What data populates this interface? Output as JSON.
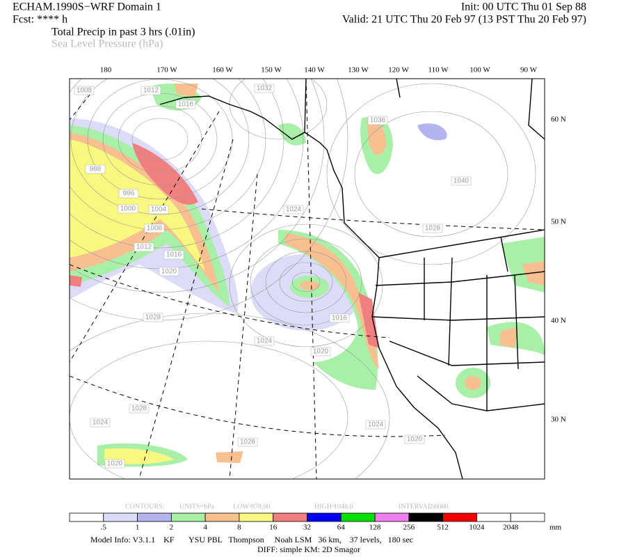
{
  "header": {
    "model": "ECHAM.1990S−WRF Domain 1",
    "init": "Init: 00 UTC Thu 01 Sep 88",
    "fcst": "Fcst: **** h",
    "valid": "Valid: 21 UTC Thu 20 Feb 97 (13 PST Thu 20 Feb 97)",
    "field_primary": "Total Precip in past 3 hrs (.01in)",
    "field_secondary": "Sea Level Pressure (hPa)"
  },
  "map": {
    "lon_labels": [
      "180",
      "170 W",
      "160 W",
      "150 W",
      "140 W",
      "130 W",
      "120 W",
      "110 W",
      "100 W",
      "90 W"
    ],
    "lat_labels": [
      "60 N",
      "50 N",
      "40 N",
      "30 N"
    ],
    "contour_labels": [
      "1008",
      "1012",
      "1016",
      "1032",
      "1036",
      "988",
      "996",
      "1000",
      "1004",
      "1008",
      "1024",
      "1028",
      "1040",
      "1012",
      "1016",
      "1020",
      "1028",
      "1024",
      "1020",
      "1016",
      "1024",
      "1020",
      "1028",
      "1024",
      "1028",
      "1020"
    ]
  },
  "contour_info": [
    "CONTOURS:",
    "UNITS=hPa",
    "LOW=",
    "978.00",
    "HIGH=",
    "1048.0",
    "INTERVAL=",
    "2.0000"
  ],
  "colorbar": {
    "colors": [
      "#ffffff",
      "#dcdcf8",
      "#b4b4f0",
      "#a8f0a8",
      "#f8c090",
      "#f8f880",
      "#f08080",
      "#0000f0",
      "#00e000",
      "#f080f0",
      "#000000",
      "#f00000",
      "#ffffff",
      "#ffffff"
    ],
    "labels": [
      ".5",
      "1",
      "2",
      "4",
      "8",
      "16",
      "32",
      "64",
      "128",
      "256",
      "512",
      "1024",
      "2048"
    ],
    "unit": "mm"
  },
  "footer": {
    "model_info": "Model Info: V3.1.1    KF       YSU PBL   Thompson     Noah LSM   36 km,    37 levels,   180 sec",
    "diff": "DIFF: simple KM: 2D Smagor"
  }
}
